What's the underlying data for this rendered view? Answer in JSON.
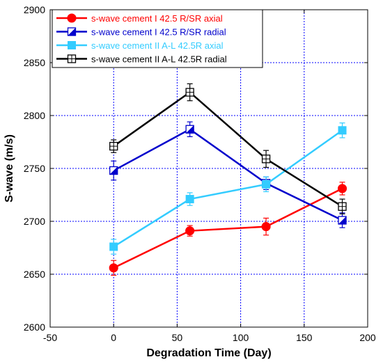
{
  "chart_data": {
    "type": "line",
    "title": "",
    "xlabel": "Degradation Time (Day)",
    "ylabel": "S-wave (m/s)",
    "xlim": [
      -50,
      200
    ],
    "ylim": [
      2600,
      2900
    ],
    "xticks": [
      -50,
      0,
      50,
      100,
      150,
      200
    ],
    "yticks": [
      2600,
      2650,
      2700,
      2750,
      2800,
      2850,
      2900
    ],
    "grid": true,
    "legend_position": "top-left",
    "series": [
      {
        "name": "s-wave cement I 42.5 R/SR axial",
        "color": "#ff0000",
        "marker": "circle",
        "legend_text_color": "#ff0000",
        "x": [
          0,
          60,
          120,
          180
        ],
        "y": [
          2656,
          2691,
          2695,
          2731
        ],
        "error": [
          7,
          5,
          8,
          6
        ]
      },
      {
        "name": "s-wave cement I 42.5 R/SR radial",
        "color": "#0000cc",
        "marker": "half-square",
        "legend_text_color": "#0000cc",
        "x": [
          0,
          60,
          120,
          180
        ],
        "y": [
          2748,
          2787,
          2736,
          2701
        ],
        "error": [
          9,
          7,
          6,
          7
        ]
      },
      {
        "name": "s-wave cement II  A-L 42.5R  axial",
        "color": "#33ccff",
        "marker": "square",
        "legend_text_color": "#33ccff",
        "x": [
          0,
          60,
          120,
          180
        ],
        "y": [
          2676,
          2721,
          2735,
          2786
        ],
        "error": [
          7,
          6,
          7,
          7
        ]
      },
      {
        "name": "s-wave cement II  A-L 42.5R radial",
        "color": "#000000",
        "marker": "open-square",
        "legend_text_color": "#000000",
        "x": [
          0,
          60,
          120,
          180
        ],
        "y": [
          2771,
          2822,
          2759,
          2714
        ],
        "error": [
          6,
          8,
          8,
          7
        ]
      }
    ]
  }
}
